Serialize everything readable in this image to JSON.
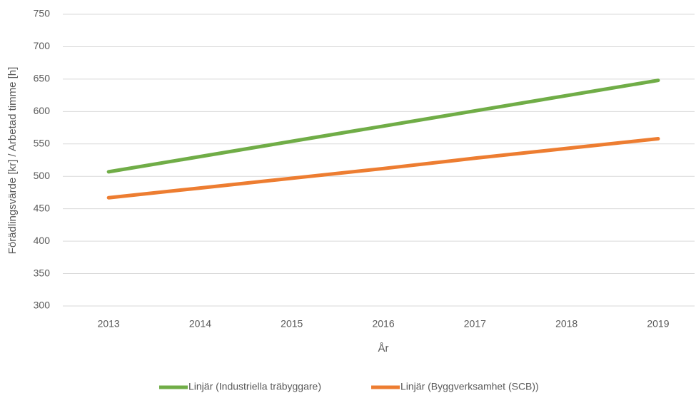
{
  "chart_data": {
    "type": "line",
    "x_label": "År",
    "y_label": "Förädlingsvärde [kr] / Arbetad timme [h]",
    "categories": [
      "2013",
      "2014",
      "2015",
      "2016",
      "2017",
      "2018",
      "2019"
    ],
    "series": [
      {
        "name": "Linjär (Industriella träbyggare)",
        "color": "#70ad47",
        "values": [
          507,
          530.5,
          554,
          577.5,
          601,
          624.5,
          648
        ]
      },
      {
        "name": "Linjär (Byggverksamhet (SCB))",
        "color": "#ed7d31",
        "values": [
          467,
          482,
          497,
          512,
          528,
          543,
          558
        ]
      }
    ],
    "ylim": [
      300,
      750
    ],
    "yticks": [
      300,
      350,
      400,
      450,
      500,
      550,
      600,
      650,
      700,
      750
    ],
    "grid": true,
    "legend": "bottom"
  }
}
